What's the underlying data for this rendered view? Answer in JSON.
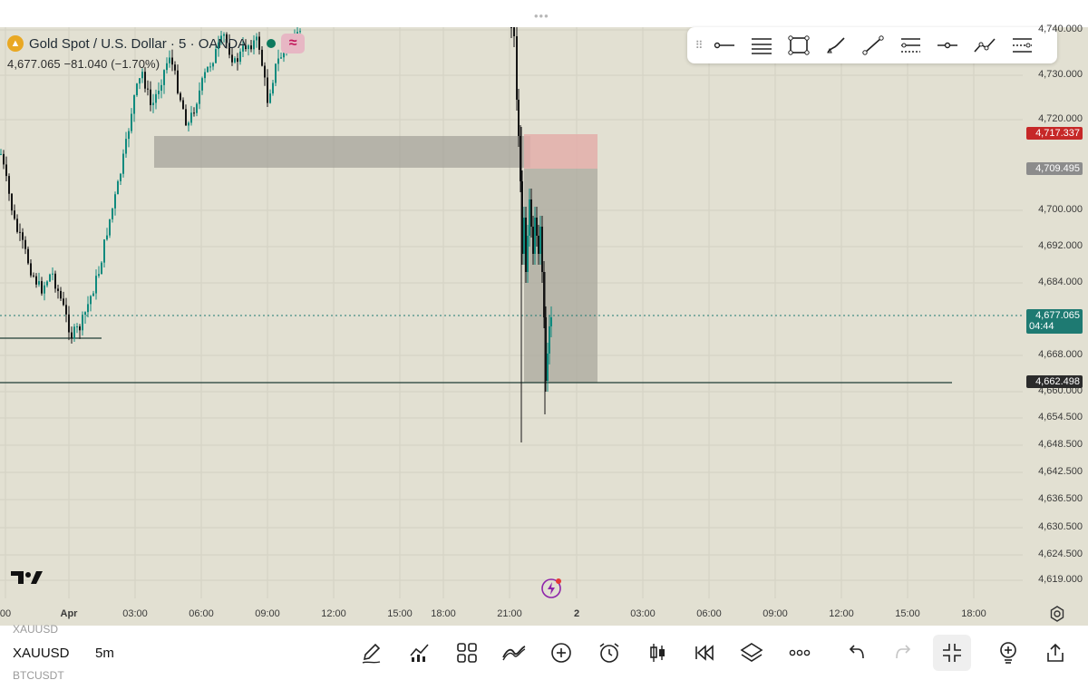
{
  "header": {
    "drag_handle": "•••"
  },
  "legend": {
    "symbol_title": "Gold Spot / U.S. Dollar · 5 · OANDA",
    "quote_line": "4,677.065  −81.040 (−1.70%)",
    "indicator_badge": "≈"
  },
  "drawing_toolbar": {
    "grip": "⠿",
    "tools": [
      "horizontal-ray-icon",
      "parallel-lines-icon",
      "rectangle-icon",
      "brush-icon",
      "trend-line-icon",
      "fib-retracement-icon",
      "horizontal-line-icon",
      "path-icon",
      "gann-fan-icon"
    ]
  },
  "price_axis": {
    "labels": [
      "4,740.000",
      "4,730.000",
      "4,720.000",
      "4,700.000",
      "4,692.000",
      "4,684.000",
      "4,668.000",
      "4,660.000",
      "4,654.500",
      "4,648.500",
      "4,642.500",
      "4,636.500",
      "4,630.500",
      "4,624.500",
      "4,619.000"
    ],
    "tags": [
      {
        "text": "4,717.337",
        "color": "#c62828"
      },
      {
        "text": "4,709.495",
        "color": "#8c8c8c"
      },
      {
        "text": "4,677.065",
        "sub": "04:44",
        "color": "#1e7a72"
      },
      {
        "text": "4,662.498",
        "color": "#2b2b2b"
      }
    ]
  },
  "time_axis": {
    "labels": [
      "00",
      "Apr",
      "03:00",
      "06:00",
      "09:00",
      "12:00",
      "15:00",
      "18:00",
      "21:00",
      "2",
      "03:00",
      "06:00",
      "09:00",
      "12:00",
      "15:00",
      "18:00"
    ]
  },
  "bottom_bar": {
    "watchlist_prev": "XAUUSD",
    "symbol": "XAUUSD",
    "interval": "5m",
    "watchlist_next": "BTCUSDT",
    "tools": [
      "pencil-icon",
      "indicators-icon",
      "layouts-icon",
      "compare-icon",
      "add-icon",
      "alarm-icon",
      "candle-type-icon",
      "replay-icon",
      "layers-icon",
      "more-icon",
      "undo-icon",
      "redo-icon",
      "fullscreen-exit-icon",
      "idea-icon",
      "share-icon"
    ]
  },
  "colors": {
    "background": "#e2e0d2",
    "bull": "#0f8a7e",
    "bear": "#151515",
    "stop_zone": "#e8b5b1",
    "target_zone": "#a9a89d"
  }
}
